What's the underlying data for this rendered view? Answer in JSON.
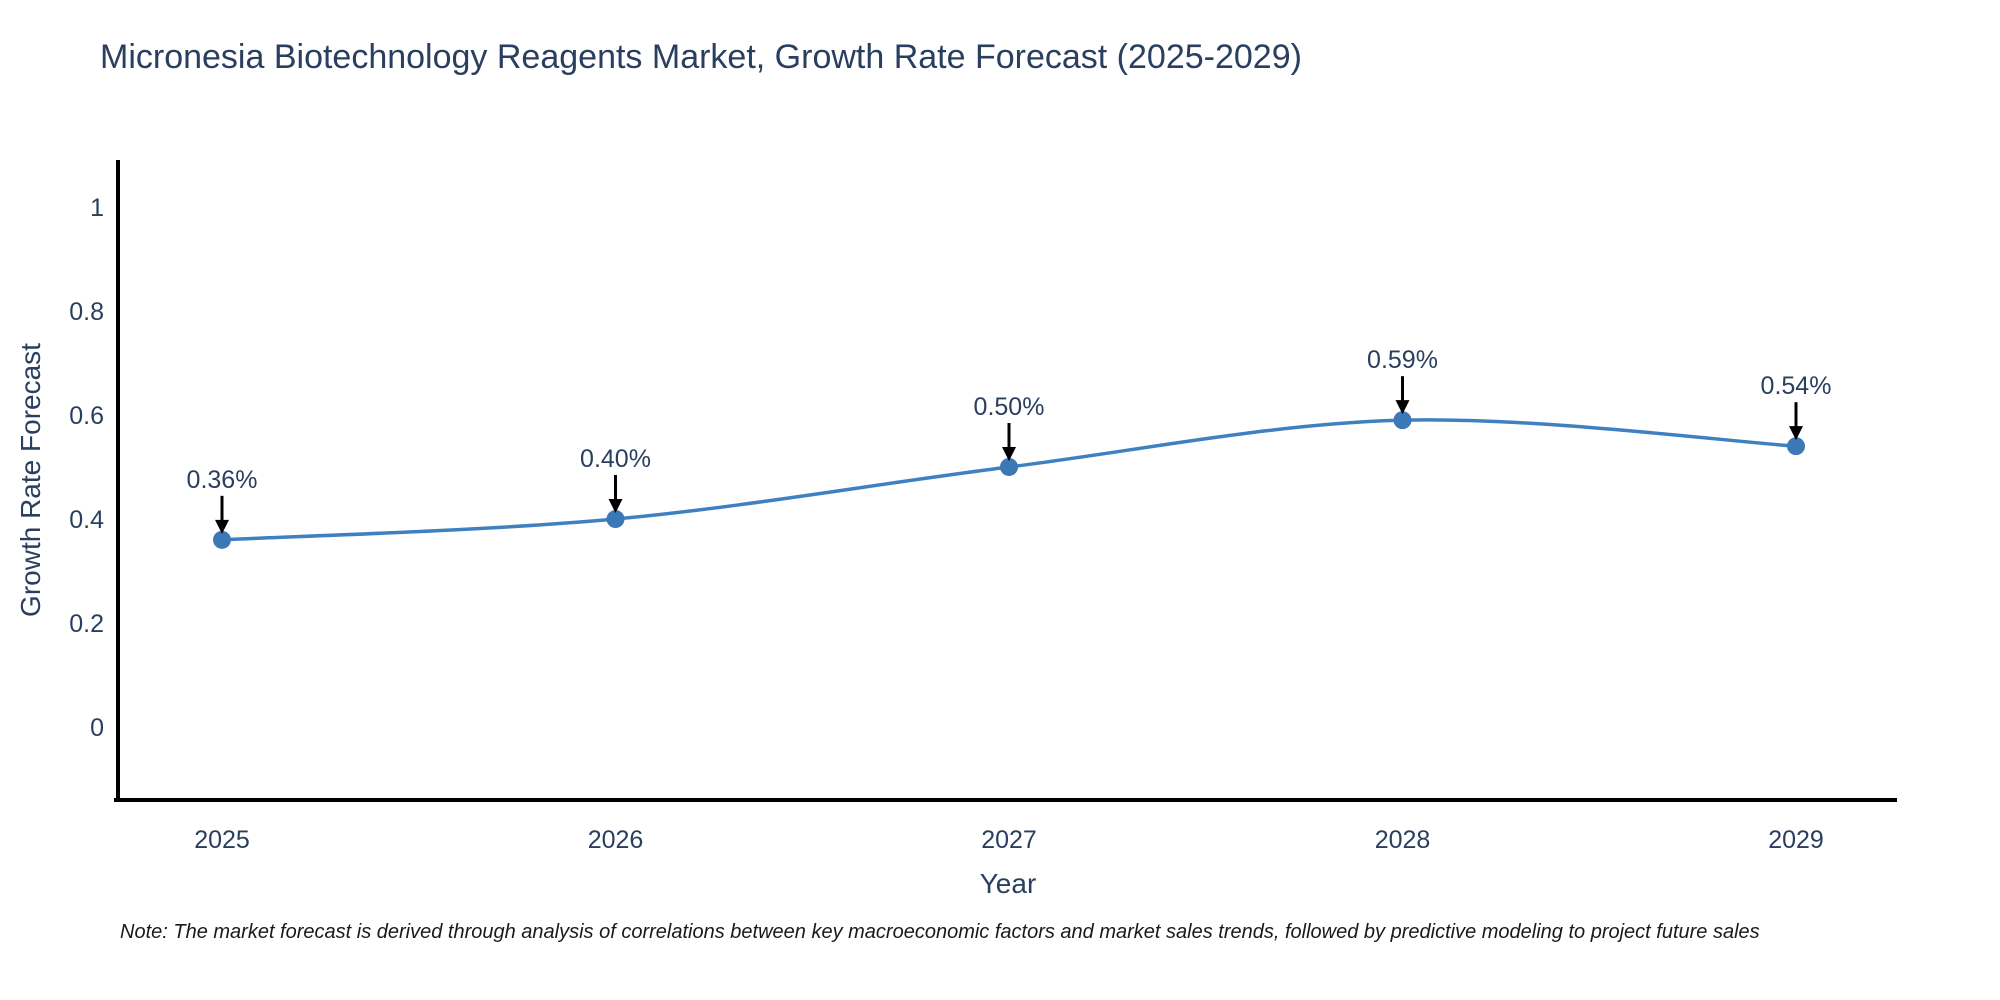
{
  "note": "Note: The market forecast is derived through analysis of correlations between key macroeconomic factors and market sales trends, followed by predictive modeling to project future sales",
  "chart_data": {
    "type": "line",
    "title": "Micronesia Biotechnology Reagents Market, Growth Rate Forecast (2025-2029)",
    "xlabel": "Year",
    "ylabel": "Growth Rate Forecast",
    "categories": [
      "2025",
      "2026",
      "2027",
      "2028",
      "2029"
    ],
    "values": [
      0.36,
      0.4,
      0.5,
      0.59,
      0.54
    ],
    "point_labels": [
      "0.36%",
      "0.40%",
      "0.50%",
      "0.59%",
      "0.54%"
    ],
    "series": [
      {
        "name": "Growth Rate Forecast",
        "values": [
          0.36,
          0.4,
          0.5,
          0.59,
          0.54
        ]
      }
    ],
    "y_ticks": [
      0,
      0.2,
      0.4,
      0.6,
      0.8,
      1
    ],
    "y_tick_labels": [
      "0",
      "0.2",
      "0.4",
      "0.6",
      "0.8",
      "1"
    ],
    "ylim": [
      -0.14,
      1.09
    ],
    "grid": false,
    "legend": "none",
    "line_shape": "spline",
    "annotation_style": "label-with-down-arrow",
    "colors": {
      "line": "#3f80c0",
      "marker": "#3a78b6",
      "axis": "#000000",
      "text": "#2a3f5f",
      "arrow": "#000000",
      "background": "#ffffff"
    }
  }
}
